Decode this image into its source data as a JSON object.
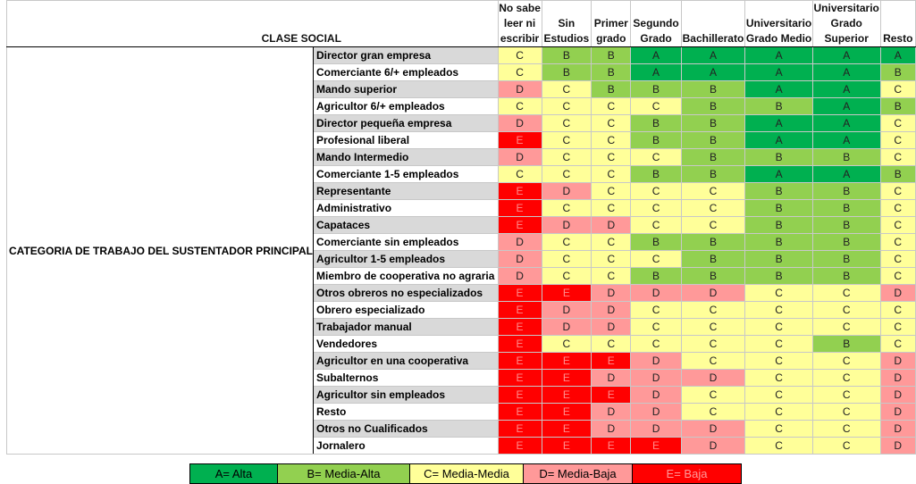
{
  "title": "CLASE SOCIAL",
  "side_label": "CATEGORIA DE TRABAJO DEL SUSTENTADOR PRINCIPAL",
  "columns": [
    "No sabe leer ni escribir",
    "Sin Estudios",
    "Primer grado",
    "Segundo Grado",
    "Bachillerato",
    "Universitario Grado Medio",
    "Universitario Grado Superior",
    "Resto"
  ],
  "rows": [
    {
      "label": "Director gran empresa",
      "values": [
        "C",
        "B",
        "B",
        "A",
        "A",
        "A",
        "A",
        "A"
      ]
    },
    {
      "label": "Comerciante 6/+ empleados",
      "values": [
        "C",
        "B",
        "B",
        "A",
        "A",
        "A",
        "A",
        "B"
      ]
    },
    {
      "label": "Mando superior",
      "values": [
        "D",
        "C",
        "B",
        "B",
        "B",
        "A",
        "A",
        "C"
      ]
    },
    {
      "label": "Agricultor 6/+ empleados",
      "values": [
        "C",
        "C",
        "C",
        "C",
        "B",
        "B",
        "A",
        "B"
      ]
    },
    {
      "label": "Director pequeña empresa",
      "values": [
        "D",
        "C",
        "C",
        "B",
        "B",
        "A",
        "A",
        "C"
      ]
    },
    {
      "label": "Profesional liberal",
      "values": [
        "E",
        "C",
        "C",
        "B",
        "B",
        "A",
        "A",
        "C"
      ]
    },
    {
      "label": "Mando Intermedio",
      "values": [
        "D",
        "C",
        "C",
        "C",
        "B",
        "B",
        "B",
        "C"
      ]
    },
    {
      "label": "Comerciante 1-5 empleados",
      "values": [
        "C",
        "C",
        "C",
        "B",
        "B",
        "A",
        "A",
        "B"
      ]
    },
    {
      "label": "Representante",
      "values": [
        "E",
        "D",
        "C",
        "C",
        "C",
        "B",
        "B",
        "C"
      ]
    },
    {
      "label": "Administrativo",
      "values": [
        "E",
        "C",
        "C",
        "C",
        "C",
        "B",
        "B",
        "C"
      ]
    },
    {
      "label": "Capataces",
      "values": [
        "E",
        "D",
        "D",
        "C",
        "C",
        "B",
        "B",
        "C"
      ]
    },
    {
      "label": "Comerciante sin empleados",
      "values": [
        "D",
        "C",
        "C",
        "B",
        "B",
        "B",
        "B",
        "C"
      ]
    },
    {
      "label": "Agricultor 1-5 empleados",
      "values": [
        "D",
        "C",
        "C",
        "C",
        "B",
        "B",
        "B",
        "C"
      ]
    },
    {
      "label": "Miembro de cooperativa no agraria",
      "values": [
        "D",
        "C",
        "C",
        "B",
        "B",
        "B",
        "B",
        "C"
      ]
    },
    {
      "label": "Otros obreros no especializados",
      "values": [
        "E",
        "E",
        "D",
        "D",
        "D",
        "C",
        "C",
        "D"
      ]
    },
    {
      "label": "Obrero especializado",
      "values": [
        "E",
        "D",
        "D",
        "C",
        "C",
        "C",
        "C",
        "C"
      ]
    },
    {
      "label": "Trabajador manual",
      "values": [
        "E",
        "D",
        "D",
        "C",
        "C",
        "C",
        "C",
        "C"
      ]
    },
    {
      "label": "Vendedores",
      "values": [
        "E",
        "C",
        "C",
        "C",
        "C",
        "C",
        "B",
        "C"
      ]
    },
    {
      "label": "Agricultor en una cooperativa",
      "values": [
        "E",
        "E",
        "E",
        "D",
        "C",
        "C",
        "C",
        "D"
      ]
    },
    {
      "label": "Subalternos",
      "values": [
        "E",
        "E",
        "D",
        "D",
        "D",
        "C",
        "C",
        "D"
      ]
    },
    {
      "label": "Agricultor sin empleados",
      "values": [
        "E",
        "E",
        "E",
        "D",
        "C",
        "C",
        "C",
        "D"
      ]
    },
    {
      "label": "Resto",
      "values": [
        "E",
        "E",
        "D",
        "D",
        "C",
        "C",
        "C",
        "D"
      ]
    },
    {
      "label": "Otros no Cualificados",
      "values": [
        "E",
        "E",
        "D",
        "D",
        "D",
        "C",
        "C",
        "D"
      ]
    },
    {
      "label": "Jornalero",
      "values": [
        "E",
        "E",
        "E",
        "E",
        "D",
        "C",
        "C",
        "D"
      ]
    }
  ],
  "legend": [
    {
      "code": "A",
      "label": "A= Alta",
      "color": "#00b050"
    },
    {
      "code": "B",
      "label": "B= Media-Alta",
      "color": "#92d050"
    },
    {
      "code": "C",
      "label": "C= Media-Media",
      "color": "#ffff99"
    },
    {
      "code": "D",
      "label": "D= Media-Baja",
      "color": "#ff9999"
    },
    {
      "code": "E",
      "label": "E= Baja",
      "color": "#ff0000"
    }
  ]
}
